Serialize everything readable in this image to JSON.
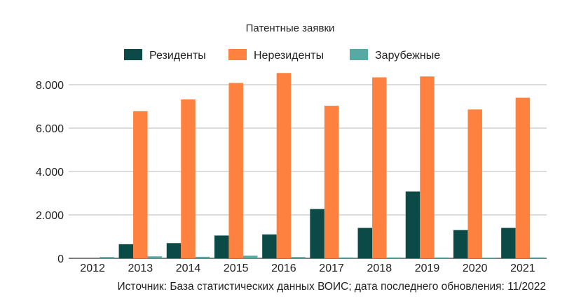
{
  "chart_data": {
    "type": "bar",
    "title": "Патентные заявки",
    "categories": [
      "2012",
      "2013",
      "2014",
      "2015",
      "2016",
      "2017",
      "2018",
      "2019",
      "2020",
      "2021"
    ],
    "series": [
      {
        "name": "Резиденты",
        "color": "#0b4a46",
        "values": [
          0,
          650,
          700,
          1050,
          1100,
          2270,
          1400,
          3080,
          1300,
          1400
        ]
      },
      {
        "name": "Нерезиденты",
        "color": "#ff8140",
        "values": [
          0,
          6780,
          7320,
          8080,
          8540,
          7030,
          8340,
          8380,
          6860,
          7400
        ]
      },
      {
        "name": "Зарубежные",
        "color": "#58a8a3",
        "values": [
          60,
          90,
          70,
          120,
          60,
          40,
          40,
          40,
          30,
          40
        ]
      }
    ],
    "ylim": [
      0,
      8000
    ],
    "yticks": [
      0,
      2000,
      4000,
      6000,
      8000
    ],
    "ytick_labels": [
      "0",
      "2.000",
      "4.000",
      "6.000",
      "8.000"
    ],
    "xlabel": "",
    "ylabel": "",
    "grid": true,
    "legend_position": "top-center",
    "source": "Источник: База статистических данных ВОИС; дата последнего обновления: 11/2022"
  }
}
